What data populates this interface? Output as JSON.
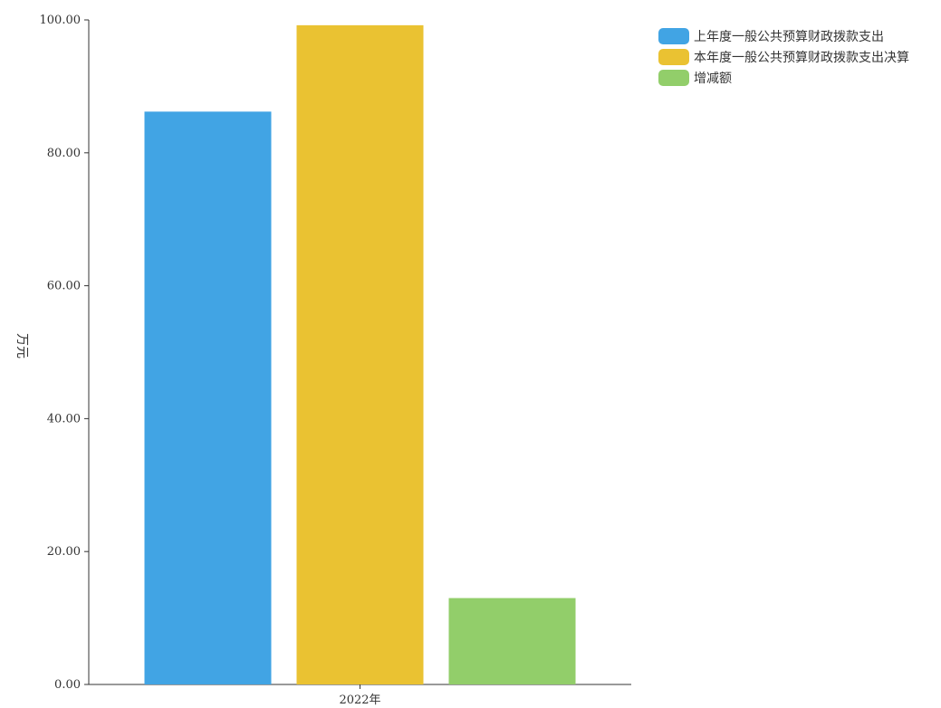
{
  "chart_data": {
    "type": "bar",
    "categories": [
      "2022年"
    ],
    "series": [
      {
        "name": "上年度一般公共预算财政拨款支出",
        "values": [
          86.2
        ],
        "color": "#41a4e4"
      },
      {
        "name": "本年度一般公共预算财政拨款支出决算",
        "values": [
          99.2
        ],
        "color": "#eac232"
      },
      {
        "name": "增减额",
        "values": [
          13.0
        ],
        "color": "#92ce6a"
      }
    ],
    "ylabel": "万元",
    "ylim": [
      0,
      100
    ],
    "yticks": [
      "0.00",
      "20.00",
      "40.00",
      "60.00",
      "80.00",
      "100.00"
    ],
    "grid": false,
    "legend_position": "top-right"
  }
}
